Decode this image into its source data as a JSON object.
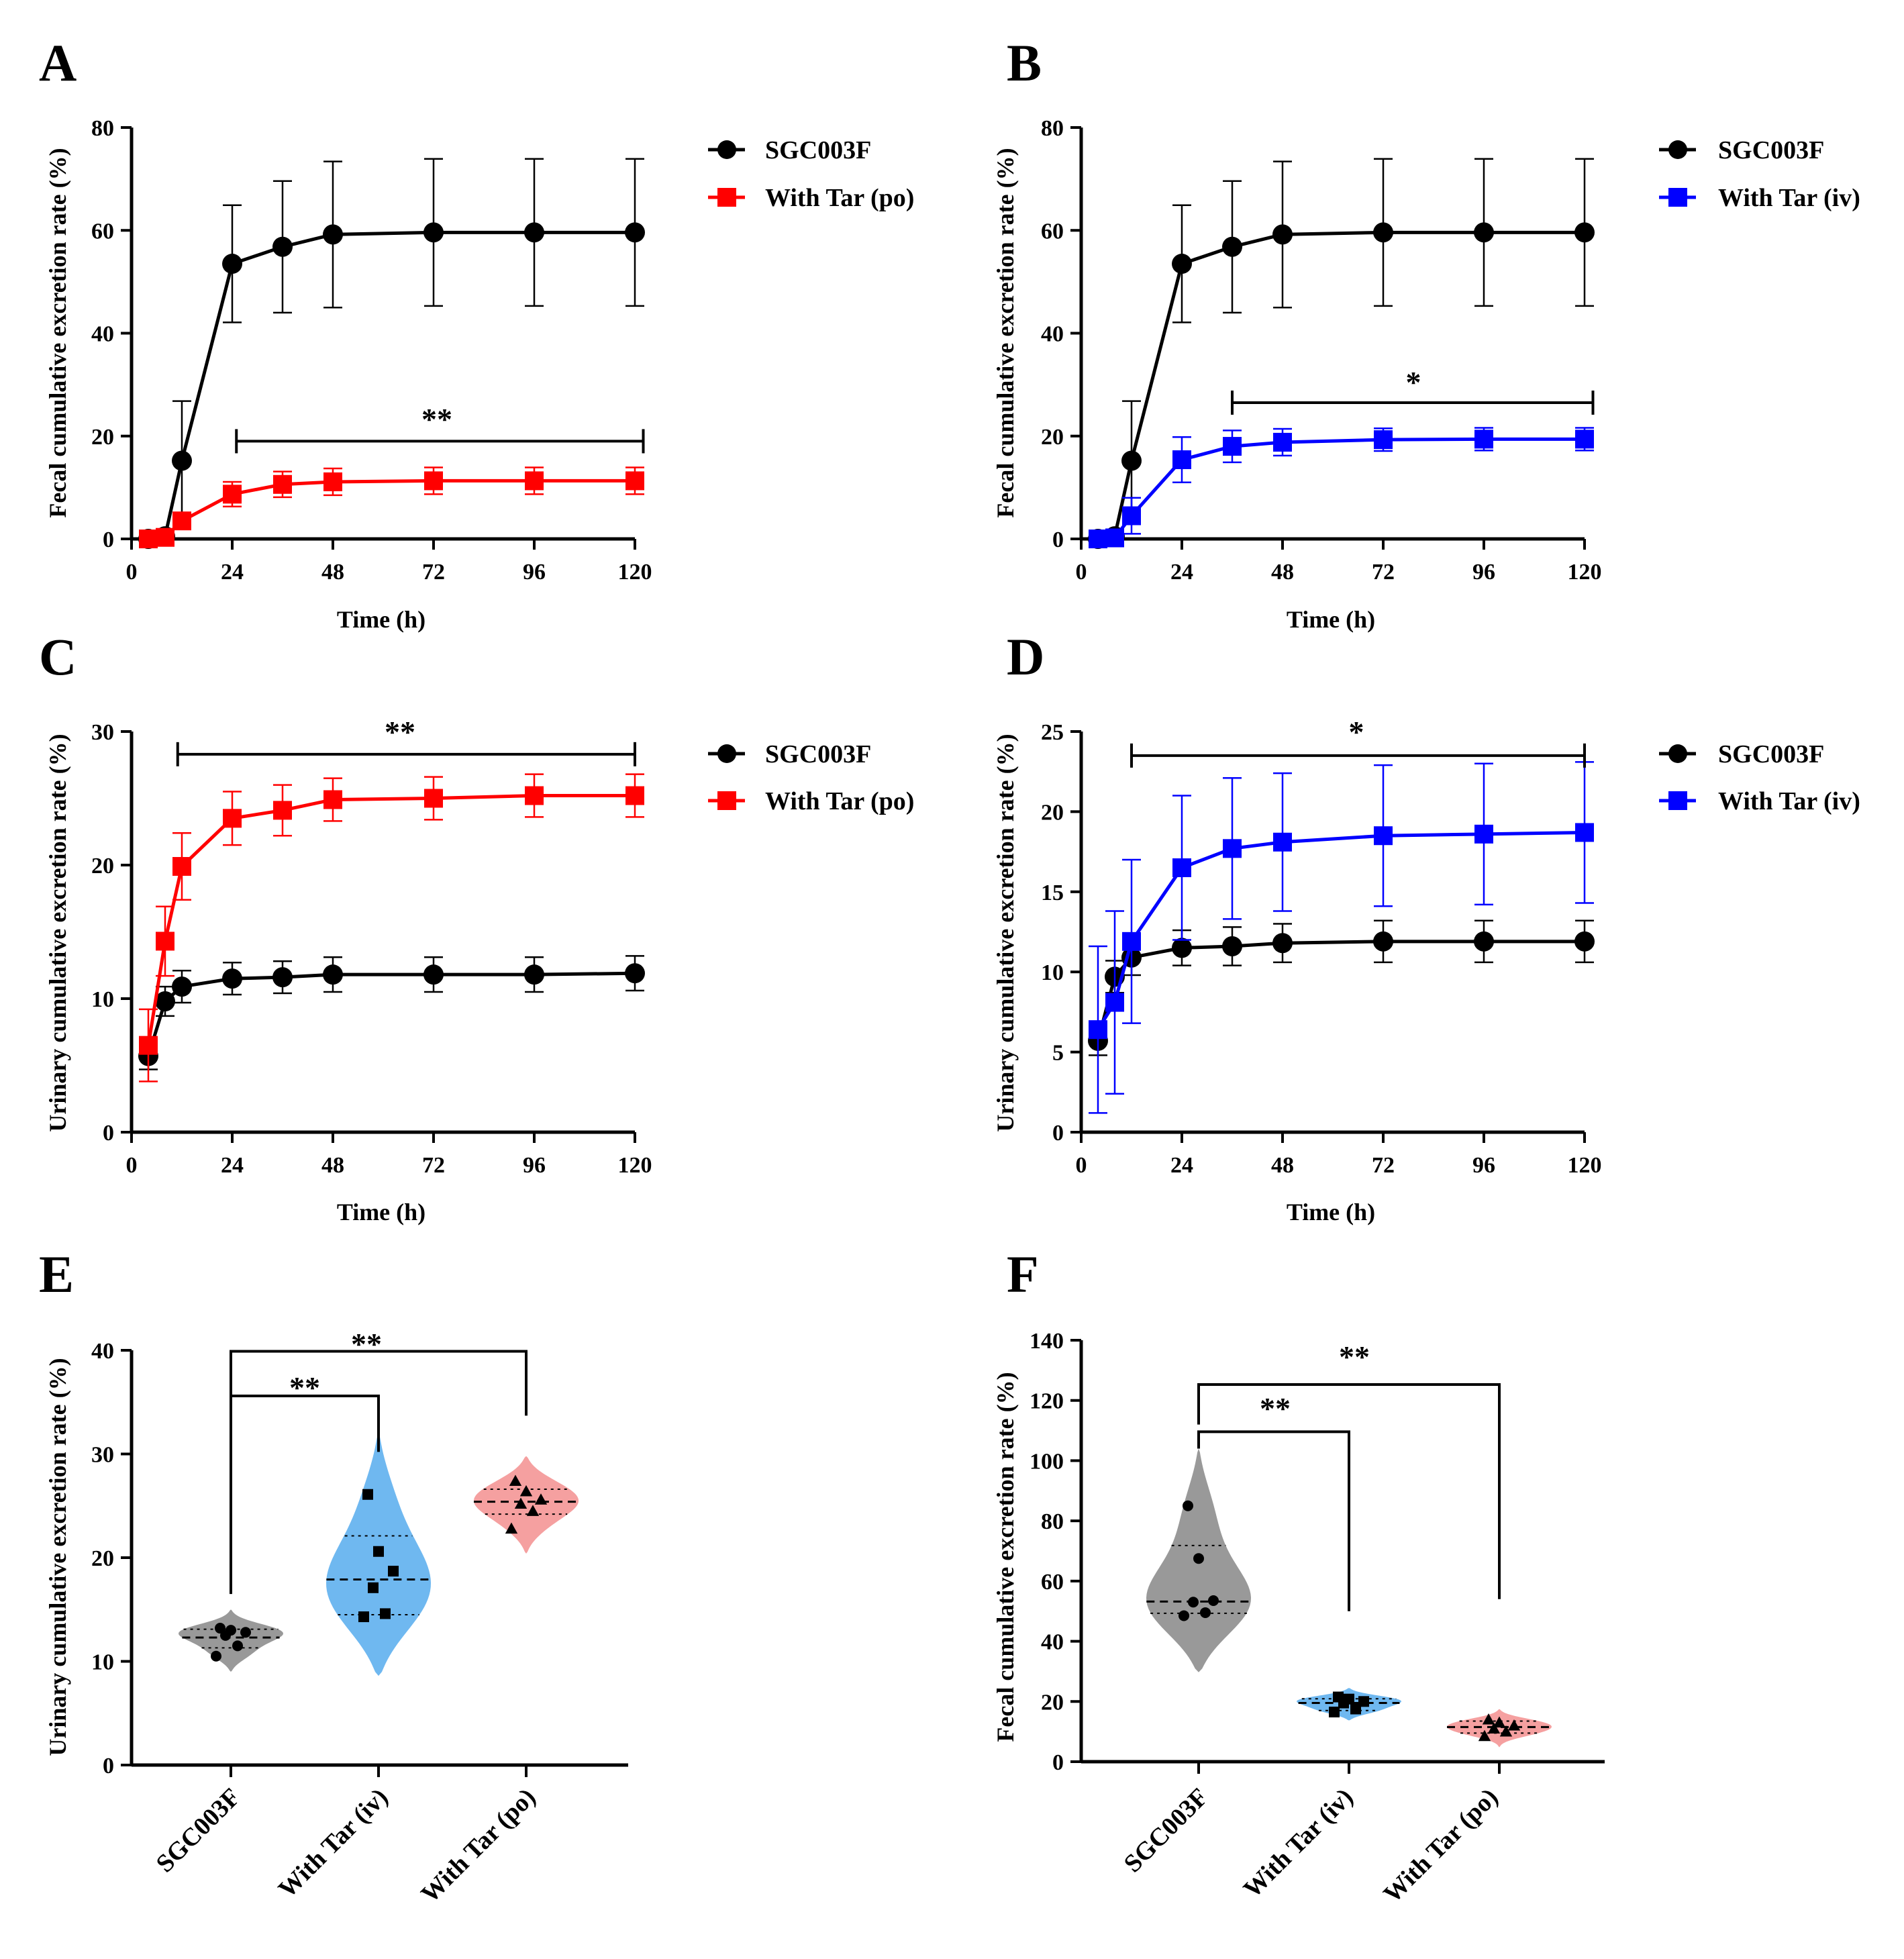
{
  "chart_data": [
    {
      "panel": "A",
      "type": "line",
      "xlabel": "Time (h)",
      "ylabel": "Fecal cumulative excretion rate (%)",
      "xlim": [
        0,
        120
      ],
      "ylim": [
        0,
        80
      ],
      "xticks": [
        0,
        24,
        48,
        72,
        96,
        120
      ],
      "yticks": [
        0,
        20,
        40,
        60,
        80
      ],
      "series": [
        {
          "name": "SGC003F",
          "color": "#000000",
          "marker": "circle",
          "x": [
            4,
            8,
            12,
            24,
            36,
            48,
            72,
            96,
            120
          ],
          "y": [
            0,
            0.5,
            15.2,
            53.5,
            56.8,
            59.2,
            59.6,
            59.6,
            59.6
          ],
          "err": [
            0.3,
            0.5,
            11.6,
            11.4,
            12.8,
            14.2,
            14.3,
            14.3,
            14.3
          ]
        },
        {
          "name": "With Tar (po)",
          "color": "#ff0000",
          "marker": "square",
          "x": [
            4,
            8,
            12,
            24,
            36,
            48,
            72,
            96,
            120
          ],
          "y": [
            0,
            0.3,
            3.5,
            8.7,
            10.6,
            11.1,
            11.3,
            11.3,
            11.3
          ],
          "err": [
            0.2,
            0.3,
            1.5,
            2.4,
            2.5,
            2.6,
            2.6,
            2.6,
            2.6
          ]
        }
      ],
      "sig": {
        "label": "**",
        "x1": 25,
        "x2": 122,
        "y": 19
      }
    },
    {
      "panel": "B",
      "type": "line",
      "xlabel": "Time (h)",
      "ylabel": "Fecal cumulative excretion rate (%)",
      "xlim": [
        0,
        120
      ],
      "ylim": [
        0,
        80
      ],
      "xticks": [
        0,
        24,
        48,
        72,
        96,
        120
      ],
      "yticks": [
        0,
        20,
        40,
        60,
        80
      ],
      "series": [
        {
          "name": "SGC003F",
          "color": "#000000",
          "marker": "circle",
          "x": [
            4,
            8,
            12,
            24,
            36,
            48,
            72,
            96,
            120
          ],
          "y": [
            0,
            0.5,
            15.2,
            53.5,
            56.8,
            59.2,
            59.6,
            59.6,
            59.6
          ],
          "err": [
            0.3,
            0.5,
            11.6,
            11.4,
            12.8,
            14.2,
            14.3,
            14.3,
            14.3
          ]
        },
        {
          "name": "With Tar (iv)",
          "color": "#0000ff",
          "marker": "square",
          "x": [
            4,
            8,
            12,
            24,
            36,
            48,
            72,
            96,
            120
          ],
          "y": [
            0,
            0.2,
            4.5,
            15.4,
            18.0,
            18.8,
            19.3,
            19.4,
            19.4
          ],
          "err": [
            0.2,
            0.3,
            3.5,
            4.4,
            3.1,
            2.6,
            2.2,
            2.2,
            2.2
          ]
        }
      ],
      "sig": {
        "label": "*",
        "x1": 36,
        "x2": 122,
        "y": 26.5
      }
    },
    {
      "panel": "C",
      "type": "line",
      "xlabel": "Time (h)",
      "ylabel": "Urinary cumulative excretion rate (%)",
      "xlim": [
        0,
        120
      ],
      "ylim": [
        0,
        30
      ],
      "xticks": [
        0,
        24,
        48,
        72,
        96,
        120
      ],
      "yticks": [
        0,
        10,
        20,
        30
      ],
      "series": [
        {
          "name": "SGC003F",
          "color": "#000000",
          "marker": "circle",
          "x": [
            4,
            8,
            12,
            24,
            36,
            48,
            72,
            96,
            120
          ],
          "y": [
            5.7,
            9.8,
            10.9,
            11.5,
            11.6,
            11.8,
            11.8,
            11.8,
            11.9
          ],
          "err": [
            1.0,
            1.1,
            1.2,
            1.2,
            1.2,
            1.3,
            1.3,
            1.3,
            1.3
          ]
        },
        {
          "name": "With Tar (po)",
          "color": "#ff0000",
          "marker": "square",
          "x": [
            4,
            8,
            12,
            24,
            36,
            48,
            72,
            96,
            120
          ],
          "y": [
            6.5,
            14.3,
            19.9,
            23.5,
            24.1,
            24.9,
            25.0,
            25.2,
            25.2
          ],
          "err": [
            2.7,
            2.6,
            2.5,
            2.0,
            1.9,
            1.6,
            1.6,
            1.6,
            1.6
          ]
        }
      ],
      "sig": {
        "label": "**",
        "x1": 11,
        "x2": 120,
        "y": 28.3
      }
    },
    {
      "panel": "D",
      "type": "line",
      "xlabel": "Time (h)",
      "ylabel": "Urinary cumulative excretion rate (%)",
      "xlim": [
        0,
        120
      ],
      "ylim": [
        0,
        25
      ],
      "xticks": [
        0,
        24,
        48,
        72,
        96,
        120
      ],
      "yticks": [
        0,
        5,
        10,
        15,
        20,
        25
      ],
      "series": [
        {
          "name": "SGC003F",
          "color": "#000000",
          "marker": "circle",
          "x": [
            4,
            8,
            12,
            24,
            36,
            48,
            72,
            96,
            120
          ],
          "y": [
            5.7,
            9.7,
            10.9,
            11.5,
            11.6,
            11.8,
            11.9,
            11.9,
            11.9
          ],
          "err": [
            0.9,
            1.0,
            1.1,
            1.1,
            1.2,
            1.2,
            1.3,
            1.3,
            1.3
          ]
        },
        {
          "name": "With Tar (iv)",
          "color": "#0000ff",
          "marker": "square",
          "x": [
            4,
            8,
            12,
            24,
            36,
            48,
            72,
            96,
            120
          ],
          "y": [
            6.4,
            8.1,
            11.9,
            16.5,
            17.7,
            18.1,
            18.5,
            18.6,
            18.7
          ],
          "err": [
            5.2,
            5.7,
            5.1,
            4.5,
            4.4,
            4.3,
            4.4,
            4.4,
            4.4
          ]
        }
      ],
      "sig": {
        "label": "*",
        "x1": 12,
        "x2": 120,
        "y": 23.5
      }
    },
    {
      "panel": "E",
      "type": "violin",
      "ylabel": "Urinary cumulative excretion rate (%)",
      "ylim": [
        0,
        40
      ],
      "yticks": [
        0,
        10,
        20,
        30,
        40
      ],
      "categories": [
        "SGC003F",
        "With Tar (iv)",
        "With Tar (po)"
      ],
      "groups": [
        {
          "name": "SGC003F",
          "color": "#999999",
          "marker": "circle",
          "values": [
            10.5,
            11.5,
            12.5,
            12.8,
            13.0,
            13.2
          ],
          "median": 12.3,
          "q1": 11.3,
          "q3": 13.1,
          "range": [
            9.0,
            15.0
          ]
        },
        {
          "name": "With Tar (iv)",
          "color": "#6fb8f0",
          "marker": "square",
          "values": [
            14.3,
            14.6,
            17.1,
            18.7,
            20.6,
            26.1
          ],
          "median": 17.9,
          "q1": 14.5,
          "q3": 22.1,
          "range": [
            8.6,
            32.0
          ]
        },
        {
          "name": "With Tar (po)",
          "color": "#f5a0a0",
          "marker": "triangle",
          "values": [
            22.8,
            24.5,
            25.2,
            25.6,
            26.4,
            27.4
          ],
          "median": 25.4,
          "q1": 24.2,
          "q3": 26.6,
          "range": [
            20.4,
            29.8
          ]
        }
      ],
      "sig": [
        {
          "label": "**",
          "from": 0,
          "to": 1,
          "y": 35.6,
          "y_from": 18.5,
          "y_to": 30.2
        },
        {
          "label": "**",
          "from": 0,
          "to": 2,
          "y": 39.9,
          "y_from": 16.5,
          "y_to": 33.7
        }
      ]
    },
    {
      "panel": "F",
      "type": "violin",
      "ylabel": "Fecal cumulative excretion rate (%)",
      "ylim": [
        0,
        140
      ],
      "yticks": [
        0,
        20,
        40,
        60,
        80,
        100,
        120,
        140
      ],
      "categories": [
        "SGC003F",
        "With Tar (iv)",
        "With Tar (po)"
      ],
      "groups": [
        {
          "name": "SGC003F",
          "color": "#999999",
          "marker": "circle",
          "values": [
            48.5,
            49.5,
            53.0,
            53.5,
            67.5,
            85.0
          ],
          "median": 53.2,
          "q1": 49.3,
          "q3": 71.8,
          "range": [
            29.7,
            104.0
          ]
        },
        {
          "name": "With Tar (iv)",
          "color": "#6fb8f0",
          "marker": "square",
          "values": [
            16.5,
            17.5,
            19.5,
            20.0,
            20.8,
            21.5
          ],
          "median": 19.5,
          "q1": 17.0,
          "q3": 20.9,
          "range": [
            13.7,
            24.5
          ]
        },
        {
          "name": "With Tar (po)",
          "color": "#f5a0a0",
          "marker": "triangle",
          "values": [
            8.5,
            10.0,
            11.0,
            12.0,
            13.0,
            14.0
          ],
          "median": 11.5,
          "q1": 9.5,
          "q3": 13.5,
          "range": [
            4.8,
            17.5
          ]
        }
      ],
      "sig": [
        {
          "label": "**",
          "from": 0,
          "to": 1,
          "y": 109.6,
          "y_from": 104.0,
          "y_to": 50.0
        },
        {
          "label": "**",
          "from": 0,
          "to": 2,
          "y": 125.3,
          "y_from": 112.0,
          "y_to": 54.0
        }
      ]
    }
  ]
}
